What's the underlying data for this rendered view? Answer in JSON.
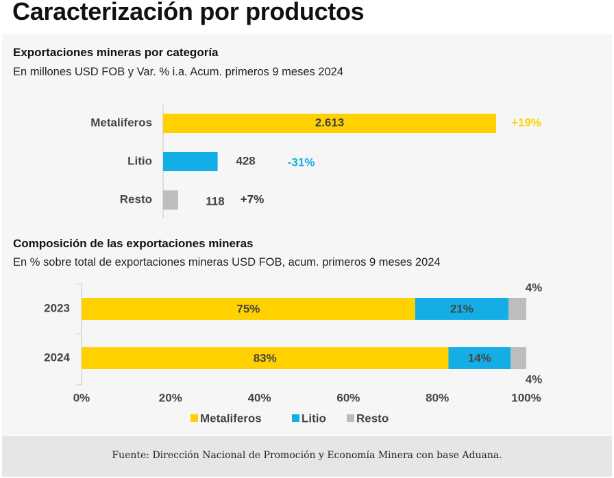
{
  "page_title": "Caracterización por productos",
  "chart1": {
    "title": "Exportaciones mineras por categoría",
    "subtitle": "En millones USD FOB y Var. % i.a. Acum. primeros 9 meses 2024"
  },
  "chart2": {
    "title": "Composición de las exportaciones mineras",
    "subtitle": "En % sobre total de exportaciones mineras USD FOB, acum. primeros 9 meses 2024"
  },
  "footer": {
    "source": "Fuente: Dirección Nacional de Promoción y Economía Minera con base Aduana."
  },
  "colors": {
    "metaliferos": "#FFD100",
    "litio": "#14AEE6",
    "resto": "#BDBDBD",
    "panel": "#F6F6F6",
    "footer": "#E6E6E6"
  },
  "chart_data": [
    {
      "type": "bar",
      "orientation": "horizontal",
      "title": "Exportaciones mineras por categoría",
      "subtitle": "En millones USD FOB y Var. % i.a. Acum. primeros 9 meses 2024",
      "categories": [
        "Metaliferos",
        "Litio",
        "Resto"
      ],
      "values": [
        2613,
        428,
        118
      ],
      "value_labels": [
        "2.613",
        "428",
        "118"
      ],
      "variation_labels": [
        "+19%",
        "-31%",
        "+7%"
      ],
      "xlim": [
        0,
        2850
      ]
    },
    {
      "type": "bar",
      "orientation": "horizontal",
      "stacked": true,
      "title": "Composición de las exportaciones mineras",
      "subtitle": "En % sobre total de exportaciones mineras USD FOB, acum. primeros 9 meses 2024",
      "categories": [
        "2023",
        "2024"
      ],
      "series": [
        {
          "name": "Metaliferos",
          "values": [
            75,
            82.5
          ],
          "labels": [
            "75%",
            "83%"
          ]
        },
        {
          "name": "Litio",
          "values": [
            21,
            14
          ],
          "labels": [
            "21%",
            "14%"
          ]
        },
        {
          "name": "Resto",
          "values": [
            4,
            3.5
          ],
          "labels": [
            "4%",
            "4%"
          ]
        }
      ],
      "xlim": [
        0,
        100
      ],
      "xticks": [
        0,
        20,
        40,
        60,
        80,
        100
      ],
      "xtick_labels": [
        "0%",
        "20%",
        "40%",
        "60%",
        "80%",
        "100%"
      ],
      "legend": [
        "Metaliferos",
        "Litio",
        "Resto"
      ],
      "legend_position": "bottom-center"
    }
  ]
}
